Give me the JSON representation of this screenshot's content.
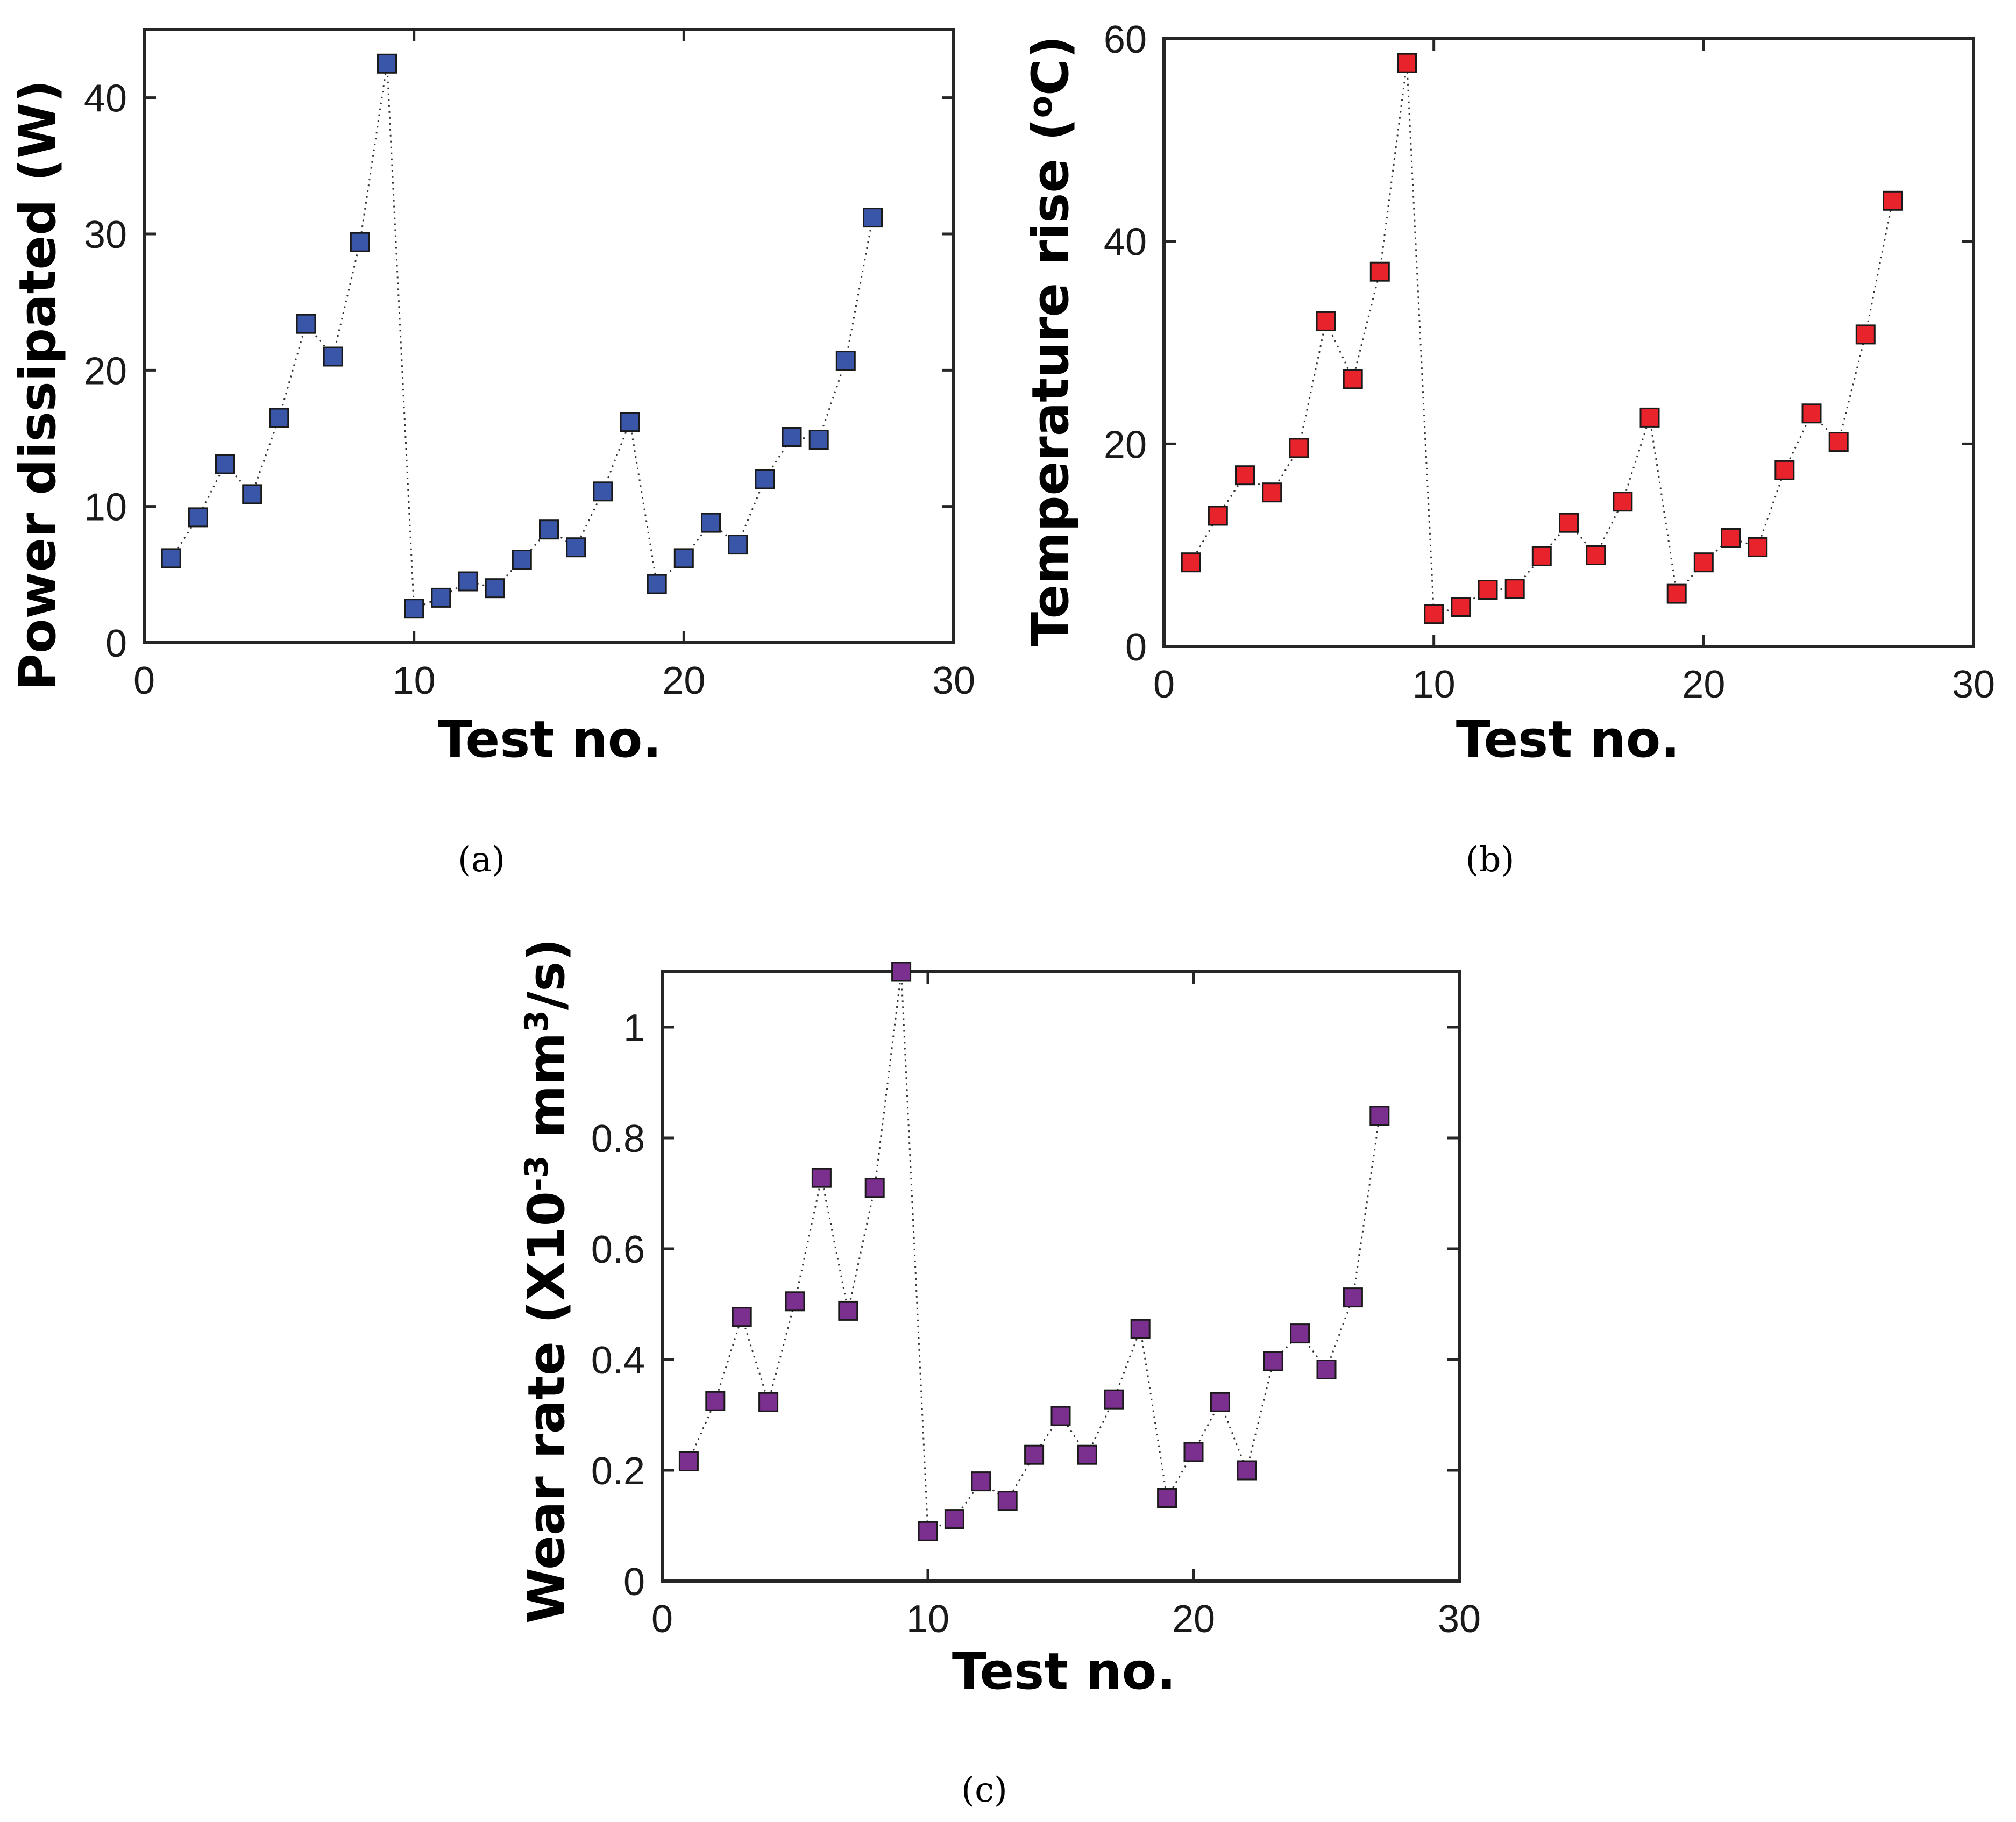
{
  "chart_data": [
    {
      "id": "a",
      "type": "line",
      "xlabel": "Test no.",
      "ylabel": "Power dissipated (W)",
      "xlim": [
        0,
        30
      ],
      "ylim": [
        0,
        45
      ],
      "xticks": [
        0,
        10,
        20,
        30
      ],
      "yticks": [
        0,
        10,
        20,
        30,
        40
      ],
      "xtick_labels": [
        "0",
        "10",
        "20",
        "30"
      ],
      "ytick_labels": [
        "0",
        "10",
        "20",
        "30",
        "40"
      ],
      "marker_color": "#3a56a8",
      "caption": "(a)",
      "series": [
        {
          "name": "Power dissipated",
          "x": [
            1,
            2,
            3,
            4,
            5,
            6,
            7,
            8,
            9,
            10,
            11,
            12,
            13,
            14,
            15,
            16,
            17,
            18,
            19,
            20,
            21,
            22,
            23,
            24,
            25,
            26,
            27
          ],
          "values": [
            6.2,
            9.2,
            13.1,
            10.9,
            16.5,
            23.4,
            21.0,
            29.4,
            42.5,
            2.5,
            3.3,
            4.5,
            4.0,
            6.1,
            8.3,
            7.0,
            11.1,
            16.2,
            4.3,
            6.2,
            8.8,
            7.2,
            12.0,
            15.1,
            14.9,
            20.7,
            31.2
          ]
        }
      ]
    },
    {
      "id": "b",
      "type": "line",
      "xlabel": "Test no.",
      "ylabel": "Temperature rise (",
      "ylabel_sup": "o",
      "ylabel_end": "C)",
      "xlim": [
        0,
        30
      ],
      "ylim": [
        0,
        60
      ],
      "xticks": [
        0,
        10,
        20,
        30
      ],
      "yticks": [
        0,
        20,
        40,
        60
      ],
      "xtick_labels": [
        "0",
        "10",
        "20",
        "30"
      ],
      "ytick_labels": [
        "0",
        "20",
        "40",
        "60"
      ],
      "marker_color": "#e8232b",
      "caption": "(b)",
      "series": [
        {
          "name": "Temperature rise",
          "x": [
            1,
            2,
            3,
            4,
            5,
            6,
            7,
            8,
            9,
            10,
            11,
            12,
            13,
            14,
            15,
            16,
            17,
            18,
            19,
            20,
            21,
            22,
            23,
            24,
            25,
            26,
            27
          ],
          "values": [
            8.3,
            12.9,
            16.9,
            15.2,
            19.6,
            32.1,
            26.4,
            37.0,
            57.6,
            3.2,
            3.9,
            5.6,
            5.7,
            8.9,
            12.2,
            9.0,
            14.3,
            22.6,
            5.2,
            8.3,
            10.7,
            9.8,
            17.4,
            23.0,
            20.2,
            30.8,
            44.0
          ]
        }
      ]
    },
    {
      "id": "c",
      "type": "line",
      "xlabel": "Test no.",
      "ylabel": "Wear rate (X10",
      "ylabel_sup": "-3",
      "ylabel_mid": " mm",
      "ylabel_sup2": "3",
      "ylabel_end": "/s)",
      "xlim": [
        0,
        30
      ],
      "ylim": [
        0,
        1.1
      ],
      "xticks": [
        0,
        10,
        20,
        30
      ],
      "yticks": [
        0,
        0.2,
        0.4,
        0.6,
        0.8,
        1.0
      ],
      "xtick_labels": [
        "0",
        "10",
        "20",
        "30"
      ],
      "ytick_labels": [
        "0",
        "0.2",
        "0.4",
        "0.6",
        "0.8",
        "1"
      ],
      "marker_color": "#7b2f8e",
      "caption": "(c)",
      "series": [
        {
          "name": "Wear rate",
          "x": [
            1,
            2,
            3,
            4,
            5,
            6,
            7,
            8,
            9,
            10,
            11,
            12,
            13,
            14,
            15,
            16,
            17,
            18,
            19,
            20,
            21,
            22,
            23,
            24,
            25,
            26,
            27
          ],
          "values": [
            0.216,
            0.325,
            0.477,
            0.323,
            0.505,
            0.728,
            0.488,
            0.71,
            1.1,
            0.09,
            0.112,
            0.18,
            0.145,
            0.228,
            0.298,
            0.228,
            0.328,
            0.455,
            0.15,
            0.233,
            0.323,
            0.2,
            0.397,
            0.447,
            0.382,
            0.512,
            0.84
          ]
        }
      ]
    }
  ]
}
